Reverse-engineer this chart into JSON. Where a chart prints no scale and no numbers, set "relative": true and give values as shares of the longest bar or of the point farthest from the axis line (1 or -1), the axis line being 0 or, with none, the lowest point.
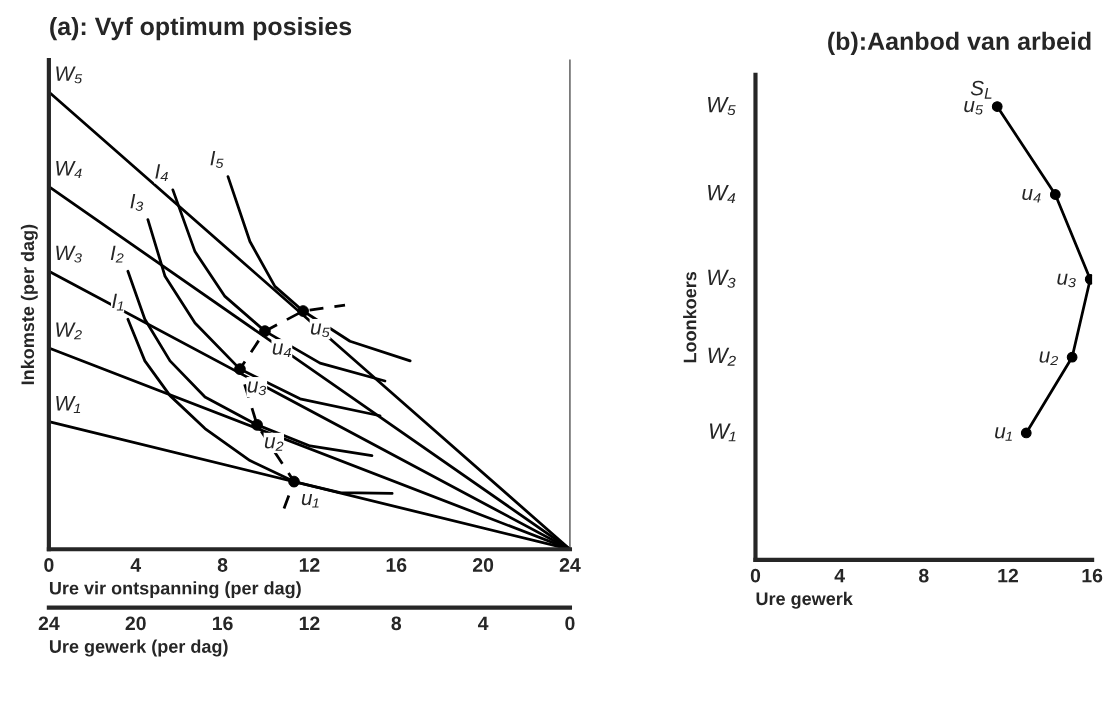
{
  "chart_data": [
    {
      "type": "line",
      "title": "(a): Vyf optimum posisies",
      "xlabel": "Ure vir ontspanning (per dag)",
      "ylabel": "Inkomste (per dag)",
      "x2label": "Ure gewerk (per dag)",
      "relative": true,
      "xlim": [
        0,
        24
      ],
      "xticks": [
        0,
        4,
        8,
        12,
        16,
        20,
        24
      ],
      "x2lim": [
        24,
        0
      ],
      "x2ticks": [
        24,
        20,
        16,
        12,
        8,
        4,
        0
      ],
      "grid": false,
      "series": [
        {
          "name": "W₁",
          "color": "#000000",
          "x": [
            24,
            0
          ],
          "values": [
            0,
            0.279
          ]
        },
        {
          "name": "W₂",
          "color": "#000000",
          "x": [
            24,
            0
          ],
          "values": [
            0,
            0.44
          ]
        },
        {
          "name": "W₃",
          "color": "#000000",
          "x": [
            24,
            0
          ],
          "values": [
            0,
            0.608
          ]
        },
        {
          "name": "W₄",
          "color": "#000000",
          "x": [
            24,
            0
          ],
          "values": [
            0,
            0.793
          ]
        },
        {
          "name": "W₅",
          "color": "#000000",
          "x": [
            24,
            0
          ],
          "values": [
            0,
            1
          ]
        },
        {
          "name": "I₁",
          "color": "#000000",
          "x": [
            15.81,
            13.41,
            11.29,
            9.26,
            7.19,
            5.58,
            4.42,
            3.64
          ],
          "values": [
            0.122,
            0.124,
            0.148,
            0.194,
            0.264,
            0.336,
            0.412,
            0.503
          ]
        },
        {
          "name": "I₂",
          "color": "#000000",
          "x": [
            14.88,
            12.03,
            9.59,
            7.19,
            5.58,
            4.42,
            3.64
          ],
          "values": [
            0.205,
            0.226,
            0.272,
            0.333,
            0.412,
            0.503,
            0.608
          ]
        },
        {
          "name": "I₃",
          "color": "#000000",
          "x": [
            15.25,
            11.57,
            8.8,
            6.73,
            5.35,
            4.56
          ],
          "values": [
            0.292,
            0.329,
            0.394,
            0.495,
            0.597,
            0.721
          ]
        },
        {
          "name": "I₄",
          "color": "#000000",
          "x": [
            15.48,
            12.49,
            9.95,
            8.11,
            6.73,
            5.71
          ],
          "values": [
            0.368,
            0.407,
            0.477,
            0.553,
            0.651,
            0.786
          ]
        },
        {
          "name": "I₅",
          "color": "#000000",
          "x": [
            16.64,
            13.87,
            11.71,
            10.41,
            9.26,
            8.25
          ],
          "values": [
            0.412,
            0.455,
            0.521,
            0.575,
            0.673,
            0.815
          ]
        },
        {
          "color": "#000000",
          "line_style": "dashed",
          "x": [
            10.83,
            11.29,
            9.59,
            8.8,
            9.95,
            11.71,
            13.64
          ],
          "values": [
            0.089,
            0.148,
            0.272,
            0.394,
            0.477,
            0.521,
            0.534
          ]
        },
        {
          "type": "scatter",
          "marker": "circle",
          "color": "#000000",
          "x": [
            11.29,
            9.59,
            8.8,
            9.95,
            11.71
          ],
          "values": [
            0.148,
            0.272,
            0.394,
            0.477,
            0.521
          ]
        }
      ],
      "annotations": [
        {
          "text": "u₁",
          "x": 11.29,
          "y": 0.148
        },
        {
          "text": "u₂",
          "x": 9.59,
          "y": 0.272
        },
        {
          "text": "u₃",
          "x": 8.8,
          "y": 0.394
        },
        {
          "text": "u₄",
          "x": 9.95,
          "y": 0.477
        },
        {
          "text": "u₅",
          "x": 11.71,
          "y": 0.521
        }
      ]
    },
    {
      "type": "line",
      "title": "(b):Aanbod van arbeid",
      "xlabel": "Ure gewerk",
      "ylabel": "Loonkoers",
      "relative": true,
      "xlim": [
        0,
        16
      ],
      "xticks": [
        0,
        4,
        8,
        12,
        16
      ],
      "grid": false,
      "marker": "circle",
      "series": [
        {
          "name": "S$_{L}$",
          "color": "#000000",
          "x": [
            12.87,
            15.05,
            15.91,
            14.25,
            11.49
          ],
          "values": [
            0.28,
            0.447,
            0.619,
            0.806,
            1
          ]
        }
      ],
      "annotations": [
        {
          "text": "u₁",
          "x": 12.87,
          "y": 0.28
        },
        {
          "text": "u₂",
          "x": 15.05,
          "y": 0.447
        },
        {
          "text": "u₃",
          "x": 15.91,
          "y": 0.619
        },
        {
          "text": "u₄",
          "x": 14.25,
          "y": 0.806
        },
        {
          "text": "u₅",
          "x": 11.49,
          "y": 1
        },
        "W₁",
        "W₂",
        "W₃",
        "W₄",
        "W₅"
      ]
    }
  ]
}
